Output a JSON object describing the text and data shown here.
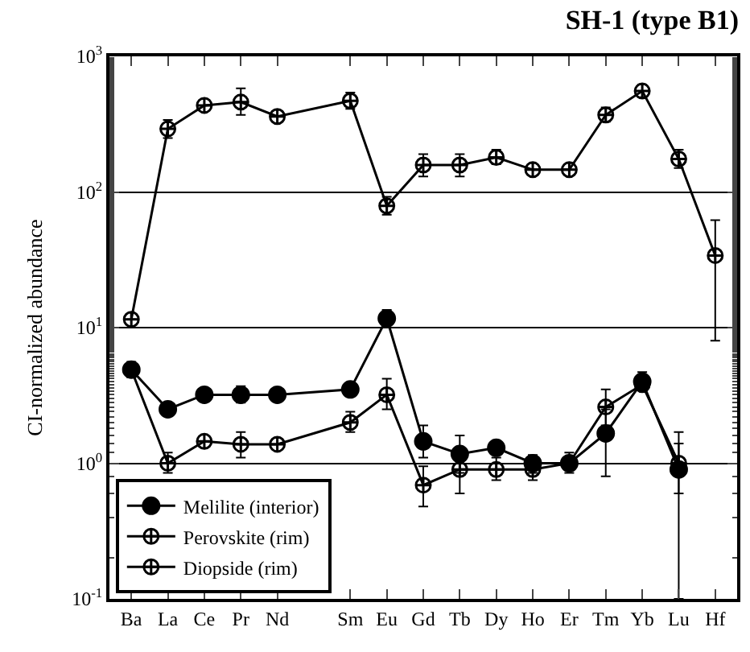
{
  "chart_data": {
    "type": "line",
    "title": "SH-1 (type B1)",
    "ylabel": "CI-normalized abundance",
    "categories": [
      "Ba",
      "La",
      "Ce",
      "Pr",
      "Nd",
      null,
      "Sm",
      "Eu",
      "Gd",
      "Tb",
      "Dy",
      "Ho",
      "Er",
      "Tm",
      "Yb",
      "Lu",
      "Hf"
    ],
    "series": [
      {
        "name": "Melilite (interior)",
        "color": "#000000",
        "marker": "circle",
        "values": [
          4.9,
          2.5,
          3.2,
          3.2,
          3.2,
          null,
          3.5,
          11.7,
          1.45,
          1.17,
          1.3,
          1.0,
          1.0,
          1.66,
          4.0,
          0.9,
          null
        ],
        "errors": [
          [
            4.3,
            5.6
          ],
          null,
          null,
          [
            2.8,
            3.7
          ],
          null,
          null,
          null,
          [
            10,
            13.5
          ],
          [
            1.1,
            1.9
          ],
          [
            0.85,
            1.6
          ],
          null,
          [
            0.85,
            1.15
          ],
          [
            0.85,
            1.2
          ],
          [
            0.8,
            2.5
          ],
          [
            3.5,
            4.7
          ],
          [
            0.1,
            1.4
          ],
          null
        ]
      },
      {
        "name": "Perovskite (rim)",
        "color": "#000000",
        "marker": "cross",
        "values": [
          11.5,
          292,
          435,
          460,
          360,
          null,
          470,
          79,
          158,
          158,
          180,
          146,
          146,
          370,
          555,
          175,
          34
        ],
        "errors": [
          null,
          [
            250,
            340
          ],
          null,
          [
            370,
            580
          ],
          null,
          null,
          [
            410,
            540
          ],
          [
            68,
            92
          ],
          [
            130,
            190
          ],
          [
            130,
            190
          ],
          [
            160,
            205
          ],
          null,
          null,
          [
            330,
            420
          ],
          [
            500,
            620
          ],
          [
            150,
            205
          ],
          [
            8,
            62
          ]
        ]
      },
      {
        "name": "Diopside (rim)",
        "color": "#000000",
        "marker": "cross",
        "values": [
          4.9,
          1.0,
          1.45,
          1.38,
          1.38,
          null,
          2.0,
          3.2,
          0.69,
          0.9,
          0.9,
          0.9,
          1.0,
          2.6,
          3.8,
          1.0,
          null
        ],
        "errors": [
          null,
          [
            0.85,
            1.2
          ],
          null,
          [
            1.1,
            1.7
          ],
          null,
          null,
          [
            1.7,
            2.4
          ],
          [
            2.5,
            4.2
          ],
          [
            0.48,
            0.95
          ],
          [
            0.6,
            1.3
          ],
          [
            0.75,
            1.1
          ],
          [
            0.75,
            1.1
          ],
          null,
          [
            1.9,
            3.5
          ],
          null,
          [
            0.6,
            1.7
          ],
          null
        ]
      }
    ],
    "log": true,
    "ylim": [
      0.1,
      1000
    ],
    "yticks": [
      {
        "value": 0.1,
        "label": "10$^{-1}$"
      },
      {
        "value": 1,
        "label": "10$^{0}$"
      },
      {
        "value": 10,
        "label": "10$^{1}$"
      },
      {
        "value": 100,
        "label": "10$^{2}$"
      },
      {
        "value": 1000,
        "label": "10$^{3}$"
      }
    ],
    "grid": "y",
    "legend": "bottom left"
  }
}
